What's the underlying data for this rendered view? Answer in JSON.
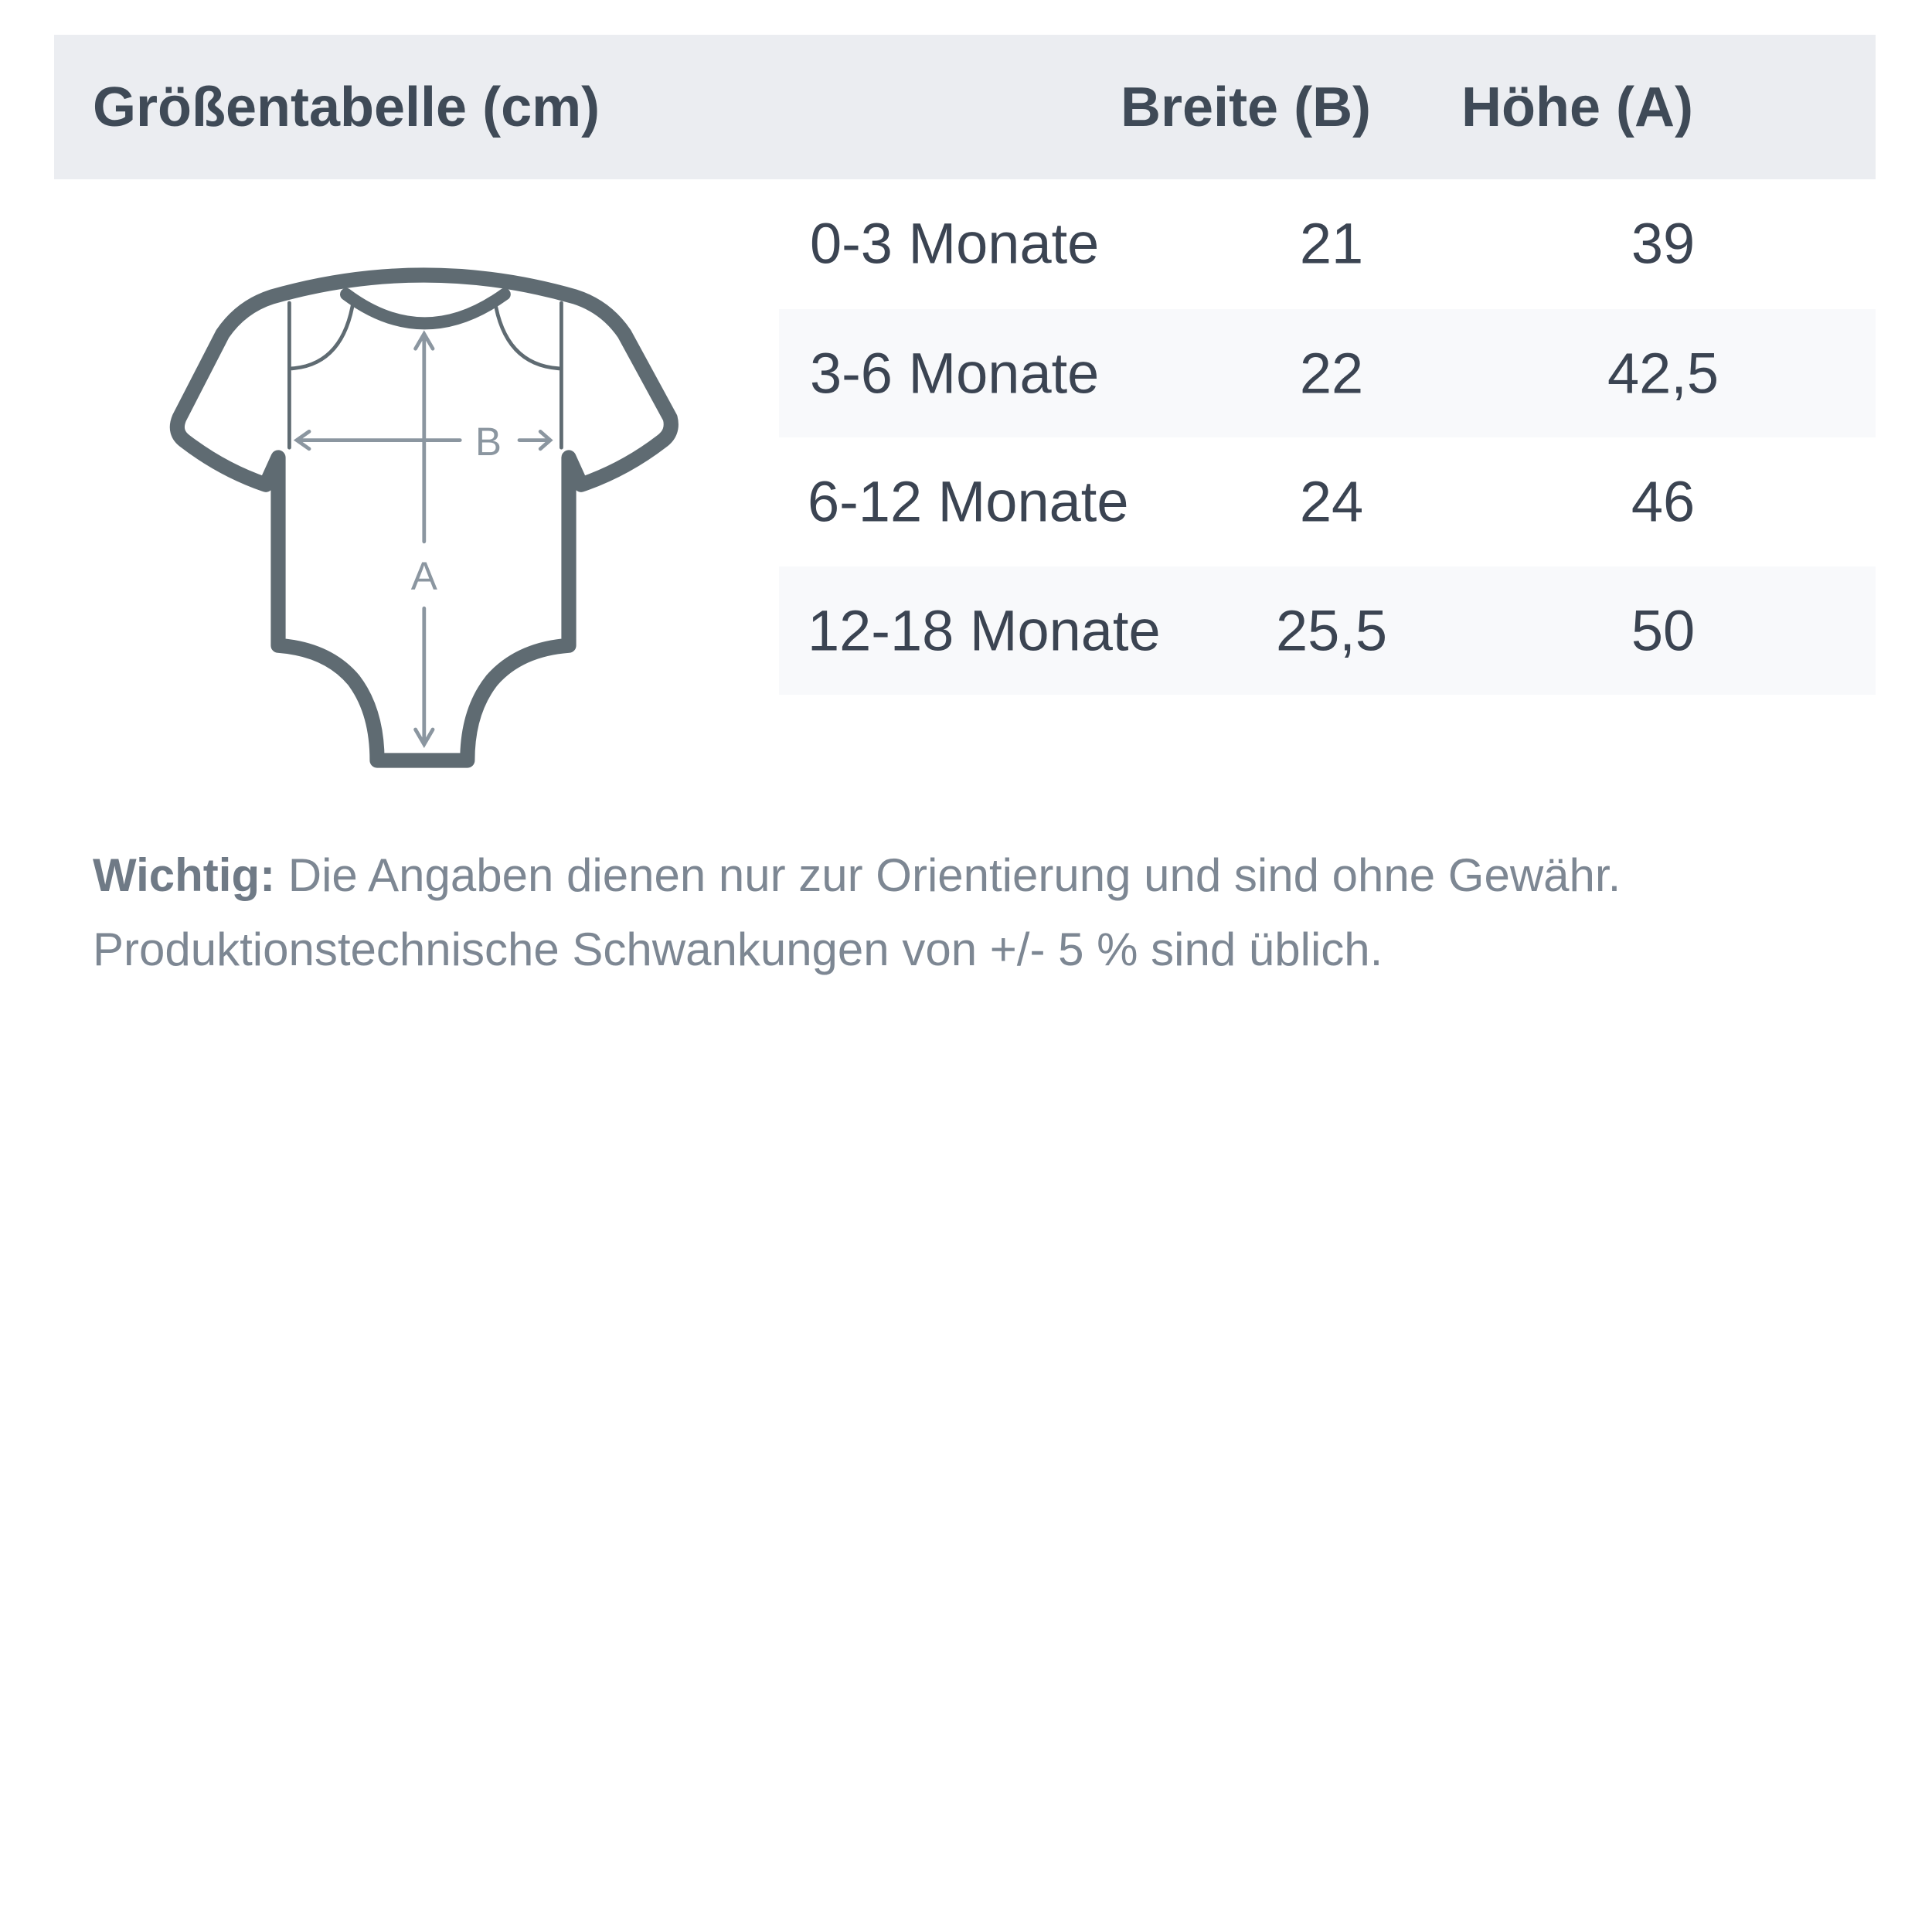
{
  "header": {
    "title": "Größentabelle (cm)",
    "col_width": "Breite (B)",
    "col_height": "Höhe (A)"
  },
  "rows": [
    {
      "size": "0-3 Monate",
      "width": "21",
      "height": "39"
    },
    {
      "size": "3-6 Monate",
      "width": "22",
      "height": "42,5"
    },
    {
      "size": "6-12 Monate",
      "width": "24",
      "height": "46"
    },
    {
      "size": "12-18 Monate",
      "width": "25,5",
      "height": "50"
    }
  ],
  "diagram": {
    "icon": "baby-bodysuit-icon",
    "label_b": "B",
    "label_a": "A"
  },
  "note": {
    "bold": "Wichtig:",
    "text": " Die Angaben dienen nur zur Orientierung und sind ohne Gewähr.",
    "line2": "Produktionstechnische Schwankungen von +/- 5 % sind üblich."
  },
  "colors": {
    "header_bg": "#ebedf1",
    "row_shade": "#f8f9fb",
    "outline": "#5f6b72",
    "measure": "#8b96a0"
  }
}
